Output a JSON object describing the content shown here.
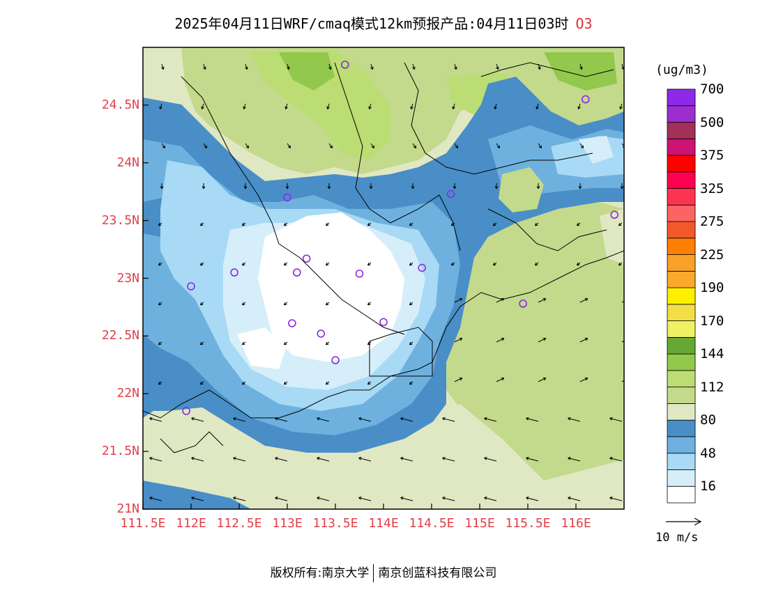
{
  "header": {
    "title": "2025年04月11日WRF/cmaq模式12km预报产品:04月11日03时",
    "species": "O3"
  },
  "map": {
    "lon_range": [
      111.5,
      116.5
    ],
    "lat_range": [
      21.0,
      25.0
    ],
    "lat_ticks": [
      {
        "value": 24.5,
        "label": "24.5N"
      },
      {
        "value": 24.0,
        "label": "24N"
      },
      {
        "value": 23.5,
        "label": "23.5N"
      },
      {
        "value": 23.0,
        "label": "23N"
      },
      {
        "value": 22.5,
        "label": "22.5N"
      },
      {
        "value": 22.0,
        "label": "22N"
      },
      {
        "value": 21.5,
        "label": "21.5N"
      },
      {
        "value": 21.0,
        "label": "21N"
      }
    ],
    "lon_ticks": [
      {
        "value": 111.5,
        "label": "111.5E"
      },
      {
        "value": 112.0,
        "label": "112E"
      },
      {
        "value": 112.5,
        "label": "112.5E"
      },
      {
        "value": 113.0,
        "label": "113E"
      },
      {
        "value": 113.5,
        "label": "113.5E"
      },
      {
        "value": 114.0,
        "label": "114E"
      },
      {
        "value": 114.5,
        "label": "114.5E"
      },
      {
        "value": 115.0,
        "label": "115E"
      },
      {
        "value": 115.5,
        "label": "115.5E"
      },
      {
        "value": 116.0,
        "label": "116E"
      }
    ],
    "station_markers": [
      {
        "lon": 113.6,
        "lat": 24.85
      },
      {
        "lon": 116.1,
        "lat": 24.55
      },
      {
        "lon": 113.0,
        "lat": 23.7
      },
      {
        "lon": 114.7,
        "lat": 23.73
      },
      {
        "lon": 116.4,
        "lat": 23.55
      },
      {
        "lon": 112.45,
        "lat": 23.05
      },
      {
        "lon": 113.1,
        "lat": 23.05
      },
      {
        "lon": 113.2,
        "lat": 23.17
      },
      {
        "lon": 113.75,
        "lat": 23.04
      },
      {
        "lon": 114.4,
        "lat": 23.09
      },
      {
        "lon": 112.0,
        "lat": 22.93
      },
      {
        "lon": 115.45,
        "lat": 22.78
      },
      {
        "lon": 113.05,
        "lat": 22.61
      },
      {
        "lon": 113.35,
        "lat": 22.52
      },
      {
        "lon": 114.0,
        "lat": 22.62
      },
      {
        "lon": 113.5,
        "lat": 22.29
      },
      {
        "lon": 111.95,
        "lat": 21.85
      }
    ]
  },
  "colorbar": {
    "unit": "(ug/m3)",
    "colors": [
      "#ffffff",
      "#d6eefa",
      "#a8daf5",
      "#6eb0de",
      "#4a8ec8",
      "#dfe8c2",
      "#c3d98c",
      "#bcdc74",
      "#92c94c",
      "#66a834",
      "#eef066",
      "#f4de48",
      "#fff000",
      "#f9aa2a",
      "#f9a028",
      "#ff8000",
      "#f2582c",
      "#fc6464",
      "#fc3450",
      "#ff0050",
      "#ff0000",
      "#cc1272",
      "#a4305a",
      "#9c2ed0",
      "#8c2ae8"
    ],
    "labels": [
      {
        "index": 1,
        "text": "16"
      },
      {
        "index": 3,
        "text": "48"
      },
      {
        "index": 5,
        "text": "80"
      },
      {
        "index": 7,
        "text": "112"
      },
      {
        "index": 9,
        "text": "144"
      },
      {
        "index": 11,
        "text": "170"
      },
      {
        "index": 13,
        "text": "190"
      },
      {
        "index": 15,
        "text": "225"
      },
      {
        "index": 17,
        "text": "275"
      },
      {
        "index": 19,
        "text": "325"
      },
      {
        "index": 21,
        "text": "375"
      },
      {
        "index": 23,
        "text": "500"
      },
      {
        "index": 25,
        "text": "700"
      }
    ]
  },
  "wind_reference": {
    "label": "10 m/s"
  },
  "footer": {
    "left": "版权所有:南京大学",
    "right": "南京创蓝科技有限公司"
  }
}
